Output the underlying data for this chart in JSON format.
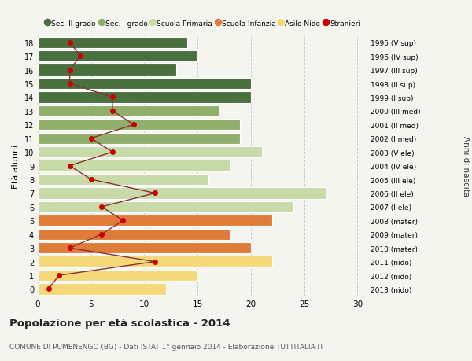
{
  "ages": [
    0,
    1,
    2,
    3,
    4,
    5,
    6,
    7,
    8,
    9,
    10,
    11,
    12,
    13,
    14,
    15,
    16,
    17,
    18
  ],
  "bar_values": [
    12,
    15,
    22,
    20,
    18,
    22,
    24,
    27,
    16,
    18,
    21,
    19,
    19,
    17,
    20,
    20,
    13,
    15,
    14
  ],
  "stranieri": [
    1,
    2,
    11,
    3,
    6,
    8,
    6,
    11,
    5,
    3,
    7,
    5,
    9,
    7,
    7,
    3,
    3,
    4,
    3
  ],
  "right_labels": [
    "2013 (nido)",
    "2012 (nido)",
    "2011 (nido)",
    "2010 (mater)",
    "2009 (mater)",
    "2008 (mater)",
    "2007 (I ele)",
    "2006 (II ele)",
    "2005 (III ele)",
    "2004 (IV ele)",
    "2003 (V ele)",
    "2002 (I med)",
    "2001 (II med)",
    "2000 (III med)",
    "1999 (I sup)",
    "1998 (II sup)",
    "1997 (III sup)",
    "1996 (IV sup)",
    "1995 (V sup)"
  ],
  "bar_colors": [
    "#f5d87a",
    "#f5d87a",
    "#f5d87a",
    "#e07c3a",
    "#e07c3a",
    "#e07c3a",
    "#c8daa8",
    "#c8daa8",
    "#c8daa8",
    "#c8daa8",
    "#c8daa8",
    "#8faf6a",
    "#8faf6a",
    "#8faf6a",
    "#4a7040",
    "#4a7040",
    "#4a7040",
    "#4a7040",
    "#4a7040"
  ],
  "legend_labels": [
    "Sec. II grado",
    "Sec. I grado",
    "Scuola Primaria",
    "Scuola Infanzia",
    "Asilo Nido",
    "Stranieri"
  ],
  "legend_colors": [
    "#4a7040",
    "#8faf6a",
    "#c8daa8",
    "#e07c3a",
    "#f5d87a",
    "#cc0000"
  ],
  "ylabel": "Età alunni",
  "right_ylabel": "Anni di nascita",
  "title": "Popolazione per età scolastica - 2014",
  "subtitle": "COMUNE DI PUMENENGO (BG) - Dati ISTAT 1° gennaio 2014 - Elaborazione TUTTITALIA.IT",
  "xlim": [
    0,
    31
  ],
  "background_color": "#f5f5f0",
  "grid_color": "#cccccc",
  "stranieri_color": "#cc0000",
  "line_color": "#8b3030"
}
